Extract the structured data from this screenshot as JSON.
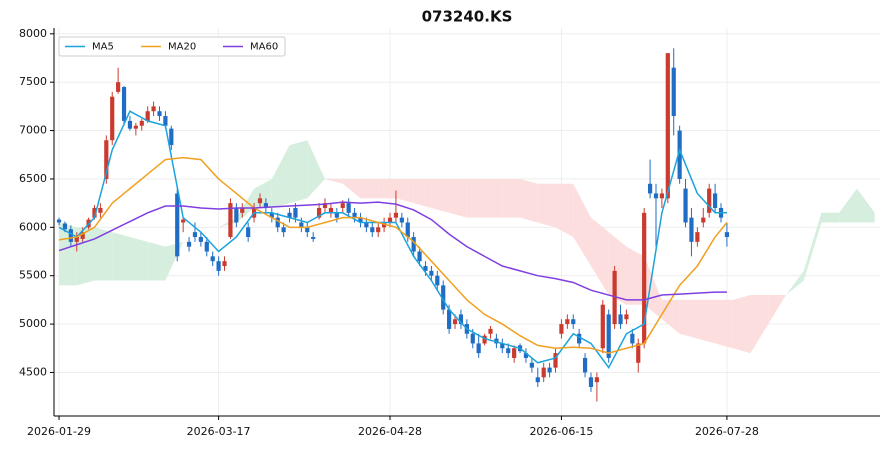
{
  "chart_data": {
    "type": "candlestick",
    "title": "073240.KS",
    "xlim": [
      -0.85,
      138.9
    ],
    "ylim": [
      4050,
      8060
    ],
    "xticks": [
      {
        "value": 0,
        "label": "2026-01-29"
      },
      {
        "value": 27,
        "label": "2026-03-17"
      },
      {
        "value": 56,
        "label": "2026-04-28"
      },
      {
        "value": 85,
        "label": "2026-06-15"
      },
      {
        "value": 113,
        "label": "2026-07-28"
      }
    ],
    "yticks": [
      4500,
      5000,
      5500,
      6000,
      6500,
      7000,
      7500,
      8000
    ],
    "grid": true,
    "legend": "upper left",
    "up_color": "#cb3a2e",
    "down_color": "#1f6dc4",
    "x": [
      0,
      1,
      2,
      3,
      4,
      5,
      6,
      7,
      8,
      9,
      10,
      11,
      12,
      13,
      14,
      15,
      16,
      17,
      18,
      19,
      20,
      21,
      22,
      23,
      24,
      25,
      26,
      27,
      28,
      29,
      30,
      31,
      32,
      33,
      34,
      35,
      36,
      37,
      38,
      39,
      40,
      41,
      42,
      43,
      44,
      45,
      46,
      47,
      48,
      49,
      50,
      51,
      52,
      53,
      54,
      55,
      56,
      57,
      58,
      59,
      60,
      61,
      62,
      63,
      64,
      65,
      66,
      67,
      68,
      69,
      70,
      71,
      72,
      73,
      74,
      75,
      76,
      77,
      78,
      79,
      80,
      81,
      82,
      83,
      84,
      85,
      86,
      87,
      88,
      89,
      90,
      91,
      92,
      93,
      94,
      95,
      96,
      97,
      98,
      99,
      100,
      101,
      102,
      103,
      104,
      105,
      106,
      107,
      108,
      109,
      110,
      111,
      112,
      113
    ],
    "ohlc": [
      [
        6080,
        6100,
        6020,
        6050
      ],
      [
        6040,
        6060,
        5950,
        5980
      ],
      [
        5980,
        6020,
        5800,
        5850
      ],
      [
        5850,
        5950,
        5750,
        5900
      ],
      [
        5880,
        6000,
        5850,
        5950
      ],
      [
        6000,
        6100,
        5980,
        6080
      ],
      [
        6100,
        6230,
        6080,
        6200
      ],
      [
        6150,
        6250,
        6100,
        6200
      ],
      [
        6500,
        6950,
        6450,
        6900
      ],
      [
        6900,
        7400,
        6850,
        7350
      ],
      [
        7400,
        7650,
        7380,
        7500
      ],
      [
        7450,
        7460,
        7050,
        7100
      ],
      [
        7100,
        7150,
        7000,
        7020
      ],
      [
        7020,
        7080,
        6950,
        7050
      ],
      [
        7050,
        7120,
        7000,
        7100
      ],
      [
        7100,
        7250,
        7080,
        7200
      ],
      [
        7200,
        7300,
        7150,
        7250
      ],
      [
        7200,
        7250,
        7100,
        7150
      ],
      [
        7150,
        7200,
        7020,
        7050
      ],
      [
        7020,
        7050,
        6800,
        6850
      ],
      [
        6350,
        6400,
        5650,
        5700
      ],
      [
        6050,
        6100,
        5950,
        6080
      ],
      [
        5850,
        5900,
        5750,
        5800
      ],
      [
        5950,
        6050,
        5850,
        5900
      ],
      [
        5900,
        5950,
        5800,
        5850
      ],
      [
        5850,
        5900,
        5700,
        5750
      ],
      [
        5700,
        5750,
        5600,
        5650
      ],
      [
        5650,
        5700,
        5500,
        5550
      ],
      [
        5600,
        5700,
        5550,
        5650
      ],
      [
        5900,
        6300,
        5880,
        6250
      ],
      [
        6200,
        6250,
        6000,
        6050
      ],
      [
        6150,
        6250,
        6100,
        6200
      ],
      [
        6000,
        6050,
        5850,
        5900
      ],
      [
        6100,
        6250,
        6050,
        6200
      ],
      [
        6250,
        6350,
        6200,
        6300
      ],
      [
        6250,
        6300,
        6150,
        6200
      ],
      [
        6150,
        6200,
        6050,
        6100
      ],
      [
        6100,
        6150,
        5950,
        6000
      ],
      [
        6000,
        6050,
        5900,
        5950
      ],
      [
        6150,
        6200,
        6050,
        6100
      ],
      [
        6200,
        6250,
        6050,
        6100
      ],
      [
        6050,
        6100,
        5950,
        6000
      ],
      [
        6000,
        6050,
        5900,
        5950
      ],
      [
        5900,
        5950,
        5850,
        5880
      ],
      [
        6100,
        6250,
        6080,
        6200
      ],
      [
        6200,
        6300,
        6150,
        6250
      ],
      [
        6150,
        6250,
        6100,
        6200
      ],
      [
        6150,
        6200,
        6050,
        6100
      ],
      [
        6200,
        6280,
        6150,
        6250
      ],
      [
        6250,
        6300,
        6100,
        6150
      ],
      [
        6150,
        6200,
        6050,
        6100
      ],
      [
        6100,
        6150,
        6000,
        6050
      ],
      [
        6050,
        6100,
        5950,
        6000
      ],
      [
        6000,
        6050,
        5900,
        5950
      ],
      [
        5950,
        6050,
        5900,
        6000
      ],
      [
        6000,
        6100,
        5950,
        6050
      ],
      [
        6050,
        6150,
        6000,
        6100
      ],
      [
        6100,
        6380,
        6050,
        6150
      ],
      [
        6100,
        6150,
        6000,
        6050
      ],
      [
        6050,
        6100,
        5850,
        5900
      ],
      [
        5900,
        5950,
        5700,
        5750
      ],
      [
        5750,
        5800,
        5600,
        5650
      ],
      [
        5600,
        5650,
        5500,
        5550
      ],
      [
        5550,
        5600,
        5450,
        5500
      ],
      [
        5500,
        5550,
        5350,
        5400
      ],
      [
        5400,
        5450,
        5100,
        5150
      ],
      [
        5150,
        5200,
        4900,
        4950
      ],
      [
        5000,
        5100,
        4950,
        5050
      ],
      [
        5100,
        5150,
        4950,
        5000
      ],
      [
        5000,
        5050,
        4850,
        4900
      ],
      [
        4900,
        4950,
        4750,
        4800
      ],
      [
        4800,
        4900,
        4650,
        4700
      ],
      [
        4800,
        4900,
        4780,
        4880
      ],
      [
        4900,
        4980,
        4850,
        4950
      ],
      [
        4850,
        4900,
        4750,
        4800
      ],
      [
        4800,
        4850,
        4700,
        4750
      ],
      [
        4750,
        4800,
        4650,
        4700
      ],
      [
        4650,
        4780,
        4600,
        4750
      ],
      [
        4780,
        4800,
        4700,
        4720
      ],
      [
        4700,
        4750,
        4600,
        4650
      ],
      [
        4600,
        4650,
        4500,
        4550
      ],
      [
        4450,
        4550,
        4350,
        4400
      ],
      [
        4450,
        4600,
        4400,
        4550
      ],
      [
        4550,
        4600,
        4450,
        4500
      ],
      [
        4550,
        4750,
        4500,
        4700
      ],
      [
        4900,
        5050,
        4850,
        5000
      ],
      [
        5000,
        5100,
        4950,
        5050
      ],
      [
        5050,
        5100,
        4950,
        5000
      ],
      [
        4900,
        4950,
        4750,
        4800
      ],
      [
        4650,
        4700,
        4450,
        4500
      ],
      [
        4450,
        4500,
        4300,
        4350
      ],
      [
        4400,
        4500,
        4200,
        4450
      ],
      [
        4750,
        5250,
        4700,
        5200
      ],
      [
        5100,
        5150,
        4600,
        4650
      ],
      [
        5000,
        5600,
        4950,
        5550
      ],
      [
        5100,
        5200,
        4950,
        5000
      ],
      [
        5050,
        5150,
        5000,
        5100
      ],
      [
        4900,
        4950,
        4750,
        4800
      ],
      [
        4600,
        4850,
        4500,
        4800
      ],
      [
        4800,
        6200,
        4750,
        6150
      ],
      [
        6450,
        6700,
        6300,
        6350
      ],
      [
        6350,
        6450,
        5800,
        6300
      ],
      [
        6300,
        6400,
        6200,
        6350
      ],
      [
        6300,
        7800,
        6250,
        7800
      ],
      [
        7650,
        7850,
        6950,
        7150
      ],
      [
        7000,
        7050,
        6450,
        6500
      ],
      [
        6400,
        6500,
        6000,
        6050
      ],
      [
        6100,
        6200,
        5700,
        5850
      ],
      [
        5850,
        6000,
        5800,
        5950
      ],
      [
        6050,
        6200,
        6000,
        6100
      ],
      [
        6150,
        6450,
        6100,
        6400
      ],
      [
        6350,
        6450,
        6150,
        6200
      ],
      [
        6200,
        6250,
        6050,
        6100
      ],
      [
        5950,
        6050,
        5800,
        5900
      ]
    ],
    "series": [
      {
        "name": "MA5",
        "color": "#1ba3dc",
        "x": [
          0,
          3,
          6,
          9,
          12,
          15,
          18,
          21,
          24,
          27,
          30,
          33,
          36,
          39,
          42,
          45,
          48,
          51,
          54,
          57,
          60,
          63,
          66,
          69,
          72,
          75,
          78,
          81,
          84,
          87,
          90,
          93,
          96,
          99,
          102,
          105,
          108,
          111,
          113
        ],
        "values": [
          6000,
          5900,
          6100,
          6800,
          7200,
          7100,
          7050,
          6100,
          5950,
          5750,
          5900,
          6150,
          6150,
          6100,
          6050,
          6150,
          6150,
          6050,
          6050,
          6050,
          5700,
          5450,
          5150,
          4950,
          4850,
          4800,
          4750,
          4600,
          4650,
          4900,
          4800,
          4550,
          4900,
          5000,
          6150,
          6800,
          6350,
          6150,
          6150
        ]
      },
      {
        "name": "MA20",
        "color": "#f0a020",
        "x": [
          0,
          3,
          6,
          9,
          12,
          15,
          18,
          21,
          24,
          27,
          30,
          33,
          36,
          39,
          42,
          45,
          48,
          51,
          54,
          57,
          60,
          63,
          66,
          69,
          72,
          75,
          78,
          81,
          84,
          87,
          90,
          93,
          96,
          99,
          102,
          105,
          108,
          111,
          113
        ],
        "values": [
          5870,
          5900,
          6000,
          6250,
          6400,
          6550,
          6700,
          6720,
          6700,
          6500,
          6350,
          6200,
          6100,
          6000,
          6000,
          6050,
          6100,
          6100,
          6050,
          6000,
          5850,
          5650,
          5450,
          5250,
          5100,
          5000,
          4880,
          4780,
          4750,
          4760,
          4750,
          4700,
          4750,
          4800,
          5100,
          5400,
          5600,
          5900,
          6050
        ]
      },
      {
        "name": "MA60",
        "color": "#7f3fe0",
        "x": [
          0,
          3,
          6,
          9,
          12,
          15,
          18,
          21,
          24,
          27,
          30,
          33,
          36,
          39,
          42,
          45,
          48,
          51,
          54,
          57,
          60,
          63,
          66,
          69,
          72,
          75,
          78,
          81,
          84,
          87,
          90,
          93,
          96,
          99,
          102,
          105,
          108,
          111,
          113
        ],
        "values": [
          5760,
          5820,
          5880,
          5970,
          6060,
          6150,
          6220,
          6220,
          6200,
          6190,
          6200,
          6200,
          6210,
          6220,
          6230,
          6240,
          6260,
          6250,
          6260,
          6240,
          6180,
          6080,
          5930,
          5800,
          5700,
          5600,
          5550,
          5500,
          5470,
          5430,
          5350,
          5300,
          5250,
          5250,
          5300,
          5310,
          5320,
          5330,
          5330
        ]
      }
    ],
    "cloud": {
      "up_color": "#d6eedd",
      "down_color": "#fcdede",
      "x": [
        0,
        3,
        6,
        9,
        12,
        15,
        18,
        21,
        24,
        27,
        30,
        33,
        36,
        39,
        42,
        45,
        48,
        51,
        54,
        57,
        60,
        63,
        66,
        69,
        72,
        75,
        78,
        81,
        84,
        87,
        90,
        93,
        96,
        99,
        102,
        105,
        108,
        111,
        114,
        117,
        120,
        123,
        126,
        129,
        132,
        135,
        138
      ],
      "span_a": [
        6050,
        6000,
        6000,
        5950,
        5900,
        5850,
        5800,
        5850,
        5900,
        6000,
        6100,
        6400,
        6500,
        6850,
        6900,
        6500,
        6450,
        6300,
        6300,
        6300,
        6250,
        6200,
        6150,
        6100,
        6100,
        6100,
        6100,
        6050,
        6000,
        5900,
        5600,
        5300,
        5200,
        5200,
        5050,
        4900,
        4850,
        4800,
        4750,
        4700,
        5000,
        5300,
        5550,
        6150,
        6150,
        6400,
        6150
      ],
      "span_b": [
        5400,
        5400,
        5450,
        5450,
        5450,
        5450,
        5450,
        5850,
        5900,
        6000,
        6050,
        6200,
        6200,
        6250,
        6300,
        6500,
        6500,
        6500,
        6500,
        6500,
        6500,
        6500,
        6500,
        6500,
        6500,
        6500,
        6500,
        6450,
        6450,
        6450,
        6100,
        5950,
        5800,
        5700,
        5250,
        5250,
        5250,
        5250,
        5250,
        5300,
        5300,
        5300,
        5450,
        6050,
        6050,
        6050,
        6050
      ]
    }
  }
}
